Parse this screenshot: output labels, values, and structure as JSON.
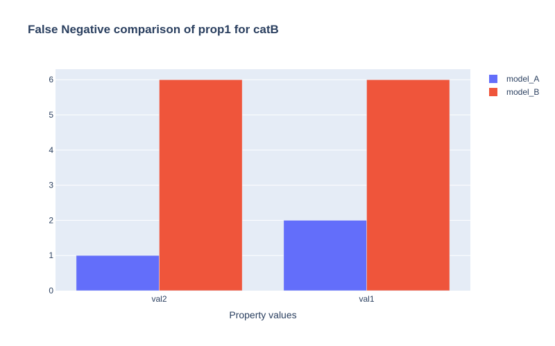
{
  "chart_data": {
    "type": "bar",
    "title": "False Negative comparison of prop1 for catB",
    "xlabel": "Property values",
    "ylabel": "",
    "categories": [
      "val2",
      "val1"
    ],
    "series": [
      {
        "name": "model_A",
        "values": [
          1,
          2
        ],
        "color": "#636efa"
      },
      {
        "name": "model_B",
        "values": [
          6,
          6
        ],
        "color": "#ef553b"
      }
    ],
    "ylim": [
      0,
      6.3
    ],
    "yticks": [
      0,
      1,
      2,
      3,
      4,
      5,
      6
    ],
    "grid": true,
    "legend_position": "top-right",
    "plot_background": "#e5ecf6"
  }
}
